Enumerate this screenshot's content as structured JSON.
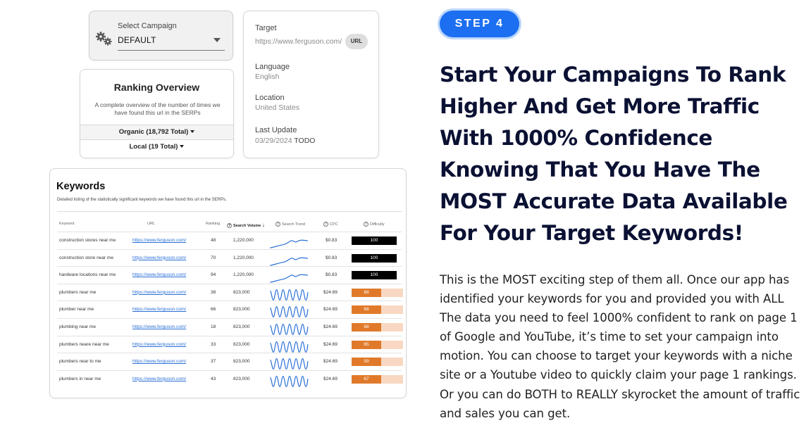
{
  "campaign": {
    "label": "Select Campaign",
    "value": "DEFAULT",
    "icon": "gears-icon"
  },
  "target": {
    "target_label": "Target",
    "target_url": "https://www.ferguson.com/",
    "url_button": "URL",
    "language_label": "Language",
    "language_value": "English",
    "location_label": "Location",
    "location_value": "United States",
    "update_label": "Last Update",
    "update_date": "03/29/2024",
    "update_note": "TODO"
  },
  "ranking": {
    "title": "Ranking Overview",
    "description": "A complete overview of the number of times we have found this url in the SERPs",
    "organic": "Organic (18,792 Total)",
    "local": "Local (19 Total)"
  },
  "keywords": {
    "title": "Keywords",
    "subtitle": "Detailed listing of the statistically significant keywords we have found this url in the SERPs.",
    "headers": {
      "keyword": "Keyword",
      "url": "URL",
      "ranking": "Ranking",
      "volume": "Search Volume",
      "trend": "Search Trend",
      "cpc": "CPC",
      "difficulty": "Difficulty"
    },
    "rows": [
      {
        "keyword": "construction stores near me",
        "url": "https://www.ferguson.com/",
        "ranking": "48",
        "volume": "1,220,000",
        "trend": "steady",
        "cpc": "$0.83",
        "difficulty": 100
      },
      {
        "keyword": "construction store near me",
        "url": "https://www.ferguson.com/",
        "ranking": "70",
        "volume": "1,220,000",
        "trend": "steady",
        "cpc": "$0.83",
        "difficulty": 100
      },
      {
        "keyword": "hardware locations near me",
        "url": "https://www.ferguson.com/",
        "ranking": "94",
        "volume": "1,220,000",
        "trend": "steady",
        "cpc": "$0.83",
        "difficulty": 100
      },
      {
        "keyword": "plumbers near me",
        "url": "https://www.ferguson.com/",
        "ranking": "38",
        "volume": "823,000",
        "trend": "wave",
        "cpc": "$24.69",
        "difficulty": 68
      },
      {
        "keyword": "plumber near me",
        "url": "https://www.ferguson.com/",
        "ranking": "66",
        "volume": "823,000",
        "trend": "wave",
        "cpc": "$24.69",
        "difficulty": 68
      },
      {
        "keyword": "plumbing near me",
        "url": "https://www.ferguson.com/",
        "ranking": "18",
        "volume": "823,000",
        "trend": "wave",
        "cpc": "$24.69",
        "difficulty": 68
      },
      {
        "keyword": "plumbers neare near me",
        "url": "https://www.ferguson.com/",
        "ranking": "33",
        "volume": "823,000",
        "trend": "wave",
        "cpc": "$24.69",
        "difficulty": 65
      },
      {
        "keyword": "plumbers near to me",
        "url": "https://www.ferguson.com/",
        "ranking": "37",
        "volume": "823,000",
        "trend": "wave",
        "cpc": "$24.69",
        "difficulty": 59
      },
      {
        "keyword": "plumbers in near me",
        "url": "https://www.ferguson.com/",
        "ranking": "43",
        "volume": "823,000",
        "trend": "wave",
        "cpc": "$24.69",
        "difficulty": 67
      }
    ]
  },
  "step": {
    "badge": "STEP 4",
    "headline": "Start Your Campaigns To Rank Higher And Get More Traffic With 1000% Confidence Knowing That You Have The MOST Accurate Data Available For Your Target Keywords!",
    "body": "This is the MOST exciting step of them all. Once our app has identified your keywords for you and provided you with ALL The data you need to feel 1000% confident to rank on page 1 of Google and YouTube, it’s time to set your campaign into motion. You can choose to target your keywords with a niche site or a Youtube video to quickly claim your page 1 rankings. Or you can do BOTH to REALLY skyrocket the amount of traffic and sales you can get."
  },
  "colors": {
    "accent": "#1c6ff0",
    "headline": "#0b1133",
    "link": "#2a6fd6",
    "difficulty_high": "#000000",
    "difficulty_medium": "#e07a2a",
    "difficulty_track": "#f8d8c2"
  }
}
